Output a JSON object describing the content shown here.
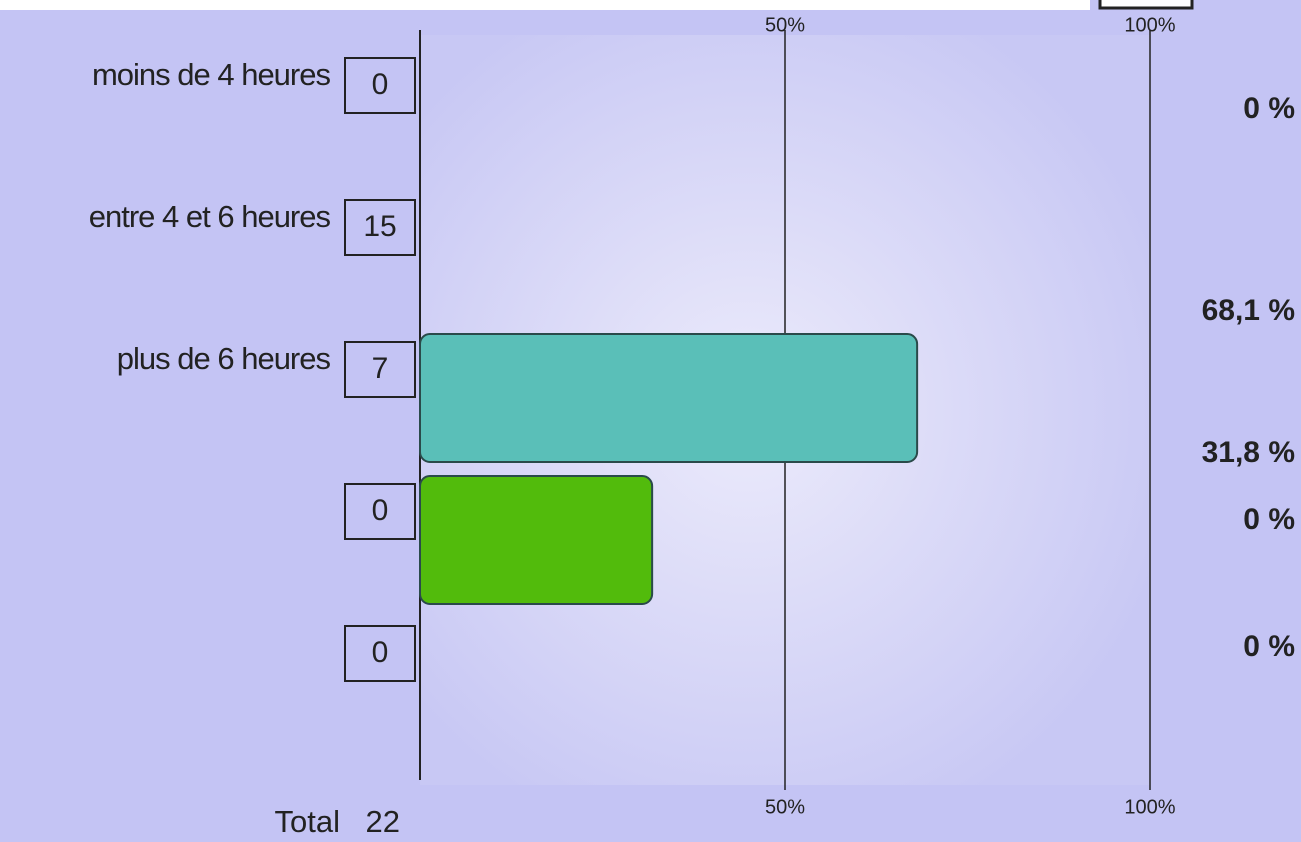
{
  "chart_data": {
    "type": "bar",
    "categories": [
      "moins de 4 heures",
      "entre 4 et 6 heures",
      "plus de 6 heures",
      null,
      null
    ],
    "counts": [
      0,
      15,
      7,
      0,
      0
    ],
    "values": [
      0,
      68.1,
      31.8,
      0,
      0
    ],
    "value_labels": [
      "0 %",
      "68,1 %",
      "31,8 %",
      "0 %",
      "0 %"
    ],
    "colors": [
      null,
      "#5abfb8",
      "#52bb0c",
      null,
      null
    ],
    "xlim": [
      0,
      100
    ],
    "xticks": [
      {
        "value": 50,
        "label": "50%"
      },
      {
        "value": 100,
        "label": "100%"
      }
    ],
    "total_label": "Total",
    "total": 22
  }
}
